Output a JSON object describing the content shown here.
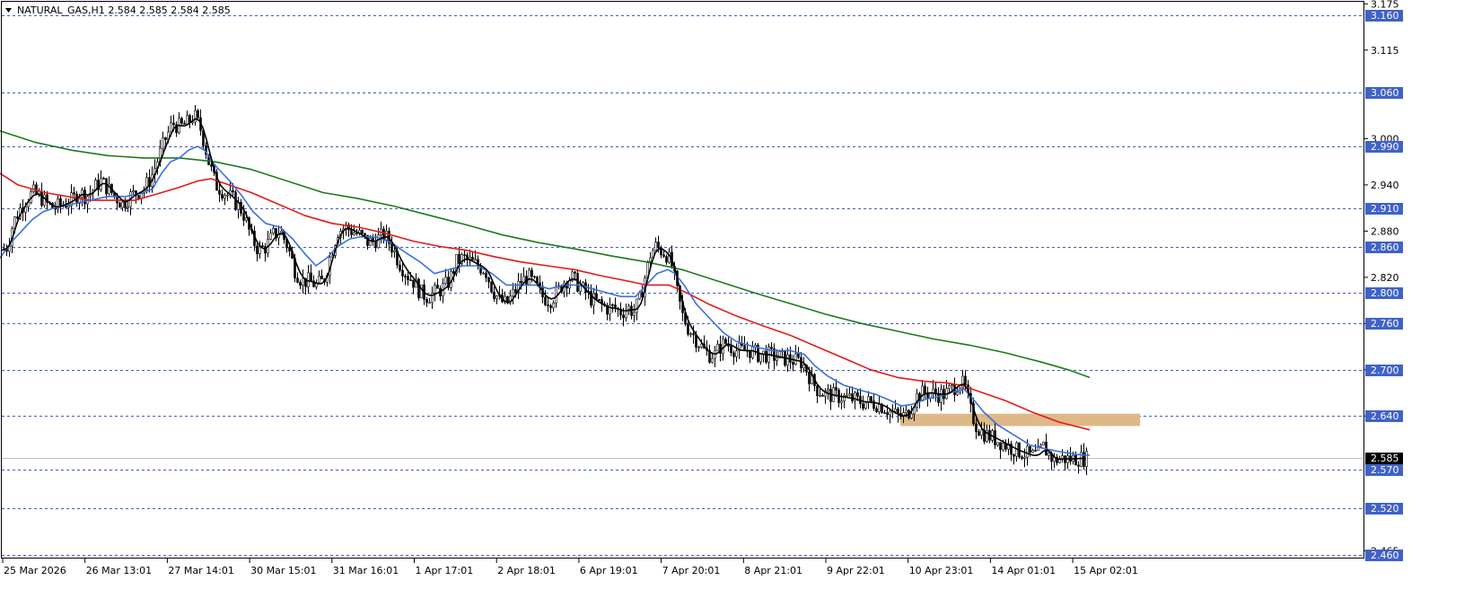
{
  "header": {
    "symbol_label": "NATURAL_GAS,H1  2.584 2.585 2.584 2.585"
  },
  "colors": {
    "background": "#ffffff",
    "candles": "#000000",
    "level_line": "#3c5ec8",
    "level_box": "#3f62c9",
    "price_box": "#000000",
    "zone": "#deb887",
    "ma_fast": "#000000",
    "ma_blue": "#3a6fe0",
    "ma_red": "#e31a1a",
    "ma_green": "#1e7a1e"
  },
  "chart_data": {
    "type": "candlestick",
    "symbol": "NATURAL_GAS",
    "timeframe": "H1",
    "ohlc_last": {
      "open": 2.584,
      "high": 2.585,
      "low": 2.584,
      "close": 2.585
    },
    "ylim": [
      2.455,
      3.18
    ],
    "y_ticks": [
      "3.175",
      "3.115",
      "3.000",
      "2.940",
      "2.880",
      "2.820",
      "2.760",
      "2.700",
      "2.640",
      "2.465"
    ],
    "x_ticks": [
      "25 Mar 2026",
      "26 Mar 13:01",
      "27 Mar 14:01",
      "30 Mar 15:01",
      "31 Mar 16:01",
      "1 Apr 17:01",
      "2 Apr 18:01",
      "6 Apr 19:01",
      "7 Apr 20:01",
      "8 Apr 21:01",
      "9 Apr 22:01",
      "10 Apr 23:01",
      "14 Apr 01:01",
      "15 Apr 02:01"
    ],
    "horizontal_levels": [
      "3.160",
      "3.060",
      "2.990",
      "2.910",
      "2.860",
      "2.800",
      "2.760",
      "2.700",
      "2.640",
      "2.570",
      "2.520",
      "2.460"
    ],
    "current_price": "2.585",
    "zone": {
      "from_price": 2.627,
      "to_price": 2.643,
      "from_x": 1003,
      "to_x": 1270
    },
    "close_path": [
      [
        0,
        2.855
      ],
      [
        8,
        2.86
      ],
      [
        14,
        2.89
      ],
      [
        20,
        2.905
      ],
      [
        28,
        2.92
      ],
      [
        36,
        2.93
      ],
      [
        44,
        2.925
      ],
      [
        52,
        2.915
      ],
      [
        60,
        2.91
      ],
      [
        70,
        2.915
      ],
      [
        80,
        2.92
      ],
      [
        88,
        2.93
      ],
      [
        96,
        2.925
      ],
      [
        104,
        2.935
      ],
      [
        112,
        2.945
      ],
      [
        120,
        2.935
      ],
      [
        128,
        2.925
      ],
      [
        136,
        2.915
      ],
      [
        144,
        2.925
      ],
      [
        152,
        2.93
      ],
      [
        160,
        2.935
      ],
      [
        168,
        2.95
      ],
      [
        176,
        2.975
      ],
      [
        184,
        3.0
      ],
      [
        192,
        3.02
      ],
      [
        200,
        3.015
      ],
      [
        208,
        3.02
      ],
      [
        216,
        3.03
      ],
      [
        224,
        3.01
      ],
      [
        232,
        2.97
      ],
      [
        240,
        2.94
      ],
      [
        250,
        2.93
      ],
      [
        260,
        2.92
      ],
      [
        270,
        2.905
      ],
      [
        280,
        2.87
      ],
      [
        288,
        2.855
      ],
      [
        296,
        2.86
      ],
      [
        304,
        2.875
      ],
      [
        312,
        2.88
      ],
      [
        320,
        2.86
      ],
      [
        328,
        2.83
      ],
      [
        336,
        2.815
      ],
      [
        344,
        2.815
      ],
      [
        352,
        2.81
      ],
      [
        360,
        2.815
      ],
      [
        368,
        2.85
      ],
      [
        376,
        2.88
      ],
      [
        384,
        2.885
      ],
      [
        392,
        2.88
      ],
      [
        400,
        2.875
      ],
      [
        410,
        2.865
      ],
      [
        420,
        2.87
      ],
      [
        428,
        2.875
      ],
      [
        436,
        2.86
      ],
      [
        444,
        2.84
      ],
      [
        452,
        2.825
      ],
      [
        460,
        2.815
      ],
      [
        468,
        2.8
      ],
      [
        476,
        2.795
      ],
      [
        484,
        2.8
      ],
      [
        492,
        2.805
      ],
      [
        500,
        2.815
      ],
      [
        508,
        2.84
      ],
      [
        516,
        2.845
      ],
      [
        524,
        2.84
      ],
      [
        532,
        2.835
      ],
      [
        540,
        2.83
      ],
      [
        548,
        2.805
      ],
      [
        556,
        2.79
      ],
      [
        564,
        2.785
      ],
      [
        572,
        2.8
      ],
      [
        580,
        2.815
      ],
      [
        588,
        2.82
      ],
      [
        596,
        2.81
      ],
      [
        604,
        2.795
      ],
      [
        612,
        2.79
      ],
      [
        620,
        2.8
      ],
      [
        628,
        2.815
      ],
      [
        636,
        2.82
      ],
      [
        644,
        2.81
      ],
      [
        652,
        2.8
      ],
      [
        660,
        2.79
      ],
      [
        668,
        2.785
      ],
      [
        676,
        2.78
      ],
      [
        684,
        2.78
      ],
      [
        692,
        2.775
      ],
      [
        700,
        2.78
      ],
      [
        706,
        2.775
      ],
      [
        712,
        2.79
      ],
      [
        718,
        2.82
      ],
      [
        724,
        2.85
      ],
      [
        730,
        2.86
      ],
      [
        736,
        2.855
      ],
      [
        742,
        2.85
      ],
      [
        748,
        2.835
      ],
      [
        754,
        2.8
      ],
      [
        760,
        2.77
      ],
      [
        766,
        2.755
      ],
      [
        772,
        2.745
      ],
      [
        778,
        2.735
      ],
      [
        784,
        2.725
      ],
      [
        790,
        2.72
      ],
      [
        796,
        2.72
      ],
      [
        802,
        2.73
      ],
      [
        808,
        2.735
      ],
      [
        814,
        2.73
      ],
      [
        820,
        2.725
      ],
      [
        828,
        2.725
      ],
      [
        836,
        2.725
      ],
      [
        844,
        2.72
      ],
      [
        852,
        2.72
      ],
      [
        860,
        2.718
      ],
      [
        868,
        2.716
      ],
      [
        876,
        2.714
      ],
      [
        884,
        2.712
      ],
      [
        892,
        2.71
      ],
      [
        898,
        2.7
      ],
      [
        904,
        2.685
      ],
      [
        910,
        2.675
      ],
      [
        916,
        2.67
      ],
      [
        922,
        2.668
      ],
      [
        930,
        2.666
      ],
      [
        940,
        2.664
      ],
      [
        950,
        2.662
      ],
      [
        960,
        2.658
      ],
      [
        968,
        2.658
      ],
      [
        976,
        2.656
      ],
      [
        984,
        2.652
      ],
      [
        992,
        2.645
      ],
      [
        1000,
        2.64
      ],
      [
        1008,
        2.64
      ],
      [
        1014,
        2.65
      ],
      [
        1020,
        2.665
      ],
      [
        1028,
        2.67
      ],
      [
        1036,
        2.67
      ],
      [
        1044,
        2.668
      ],
      [
        1052,
        2.668
      ],
      [
        1060,
        2.675
      ],
      [
        1068,
        2.683
      ],
      [
        1074,
        2.68
      ],
      [
        1080,
        2.65
      ],
      [
        1086,
        2.63
      ],
      [
        1092,
        2.62
      ],
      [
        1100,
        2.615
      ],
      [
        1108,
        2.61
      ],
      [
        1116,
        2.605
      ],
      [
        1124,
        2.6
      ],
      [
        1132,
        2.595
      ],
      [
        1140,
        2.592
      ],
      [
        1148,
        2.588
      ],
      [
        1156,
        2.59
      ],
      [
        1162,
        2.6
      ],
      [
        1168,
        2.59
      ],
      [
        1174,
        2.582
      ],
      [
        1180,
        2.585
      ],
      [
        1190,
        2.584
      ],
      [
        1200,
        2.585
      ],
      [
        1212,
        2.585
      ]
    ],
    "ma_blue": [
      [
        0,
        2.845
      ],
      [
        12,
        2.865
      ],
      [
        24,
        2.88
      ],
      [
        36,
        2.895
      ],
      [
        48,
        2.905
      ],
      [
        60,
        2.91
      ],
      [
        80,
        2.915
      ],
      [
        100,
        2.92
      ],
      [
        120,
        2.925
      ],
      [
        140,
        2.925
      ],
      [
        160,
        2.93
      ],
      [
        170,
        2.935
      ],
      [
        180,
        2.955
      ],
      [
        190,
        2.97
      ],
      [
        200,
        2.975
      ],
      [
        210,
        2.985
      ],
      [
        220,
        2.99
      ],
      [
        228,
        2.985
      ],
      [
        240,
        2.965
      ],
      [
        256,
        2.945
      ],
      [
        270,
        2.925
      ],
      [
        282,
        2.905
      ],
      [
        296,
        2.89
      ],
      [
        312,
        2.885
      ],
      [
        326,
        2.87
      ],
      [
        340,
        2.85
      ],
      [
        352,
        2.835
      ],
      [
        364,
        2.845
      ],
      [
        376,
        2.86
      ],
      [
        390,
        2.87
      ],
      [
        404,
        2.873
      ],
      [
        420,
        2.872
      ],
      [
        436,
        2.865
      ],
      [
        452,
        2.852
      ],
      [
        468,
        2.84
      ],
      [
        484,
        2.825
      ],
      [
        500,
        2.83
      ],
      [
        516,
        2.835
      ],
      [
        532,
        2.835
      ],
      [
        548,
        2.825
      ],
      [
        564,
        2.81
      ],
      [
        580,
        2.81
      ],
      [
        596,
        2.81
      ],
      [
        612,
        2.805
      ],
      [
        628,
        2.81
      ],
      [
        644,
        2.81
      ],
      [
        660,
        2.805
      ],
      [
        676,
        2.8
      ],
      [
        692,
        2.795
      ],
      [
        708,
        2.795
      ],
      [
        720,
        2.81
      ],
      [
        732,
        2.825
      ],
      [
        744,
        2.83
      ],
      [
        752,
        2.825
      ],
      [
        762,
        2.81
      ],
      [
        776,
        2.785
      ],
      [
        792,
        2.765
      ],
      [
        806,
        2.748
      ],
      [
        820,
        2.737
      ],
      [
        840,
        2.73
      ],
      [
        860,
        2.725
      ],
      [
        880,
        2.725
      ],
      [
        896,
        2.72
      ],
      [
        908,
        2.705
      ],
      [
        922,
        2.692
      ],
      [
        940,
        2.68
      ],
      [
        960,
        2.673
      ],
      [
        976,
        2.668
      ],
      [
        992,
        2.66
      ],
      [
        1004,
        2.653
      ],
      [
        1016,
        2.655
      ],
      [
        1032,
        2.662
      ],
      [
        1048,
        2.666
      ],
      [
        1064,
        2.672
      ],
      [
        1074,
        2.675
      ],
      [
        1084,
        2.662
      ],
      [
        1096,
        2.645
      ],
      [
        1112,
        2.628
      ],
      [
        1130,
        2.615
      ],
      [
        1148,
        2.602
      ],
      [
        1166,
        2.597
      ],
      [
        1184,
        2.593
      ],
      [
        1200,
        2.59
      ],
      [
        1214,
        2.589
      ]
    ],
    "ma_red": [
      [
        0,
        2.955
      ],
      [
        20,
        2.94
      ],
      [
        50,
        2.93
      ],
      [
        100,
        2.92
      ],
      [
        150,
        2.92
      ],
      [
        180,
        2.93
      ],
      [
        200,
        2.937
      ],
      [
        220,
        2.945
      ],
      [
        235,
        2.948
      ],
      [
        255,
        2.94
      ],
      [
        280,
        2.93
      ],
      [
        310,
        2.915
      ],
      [
        340,
        2.9
      ],
      [
        370,
        2.89
      ],
      [
        400,
        2.885
      ],
      [
        430,
        2.877
      ],
      [
        460,
        2.867
      ],
      [
        490,
        2.86
      ],
      [
        520,
        2.855
      ],
      [
        550,
        2.847
      ],
      [
        580,
        2.84
      ],
      [
        610,
        2.835
      ],
      [
        640,
        2.83
      ],
      [
        670,
        2.822
      ],
      [
        700,
        2.815
      ],
      [
        720,
        2.81
      ],
      [
        745,
        2.81
      ],
      [
        765,
        2.8
      ],
      [
        790,
        2.785
      ],
      [
        820,
        2.77
      ],
      [
        850,
        2.757
      ],
      [
        880,
        2.745
      ],
      [
        910,
        2.73
      ],
      [
        940,
        2.715
      ],
      [
        970,
        2.7
      ],
      [
        1000,
        2.69
      ],
      [
        1030,
        2.685
      ],
      [
        1055,
        2.683
      ],
      [
        1070,
        2.68
      ],
      [
        1090,
        2.672
      ],
      [
        1120,
        2.66
      ],
      [
        1150,
        2.645
      ],
      [
        1180,
        2.632
      ],
      [
        1214,
        2.622
      ]
    ],
    "ma_green": [
      [
        0,
        3.01
      ],
      [
        40,
        2.995
      ],
      [
        80,
        2.985
      ],
      [
        120,
        2.978
      ],
      [
        160,
        2.975
      ],
      [
        200,
        2.975
      ],
      [
        240,
        2.97
      ],
      [
        280,
        2.96
      ],
      [
        320,
        2.945
      ],
      [
        360,
        2.93
      ],
      [
        400,
        2.922
      ],
      [
        440,
        2.912
      ],
      [
        480,
        2.9
      ],
      [
        520,
        2.888
      ],
      [
        560,
        2.875
      ],
      [
        600,
        2.865
      ],
      [
        640,
        2.857
      ],
      [
        680,
        2.848
      ],
      [
        720,
        2.84
      ],
      [
        760,
        2.83
      ],
      [
        800,
        2.815
      ],
      [
        840,
        2.8
      ],
      [
        880,
        2.786
      ],
      [
        920,
        2.772
      ],
      [
        960,
        2.76
      ],
      [
        1000,
        2.75
      ],
      [
        1040,
        2.74
      ],
      [
        1080,
        2.732
      ],
      [
        1120,
        2.722
      ],
      [
        1160,
        2.71
      ],
      [
        1190,
        2.7
      ],
      [
        1214,
        2.69
      ]
    ]
  }
}
